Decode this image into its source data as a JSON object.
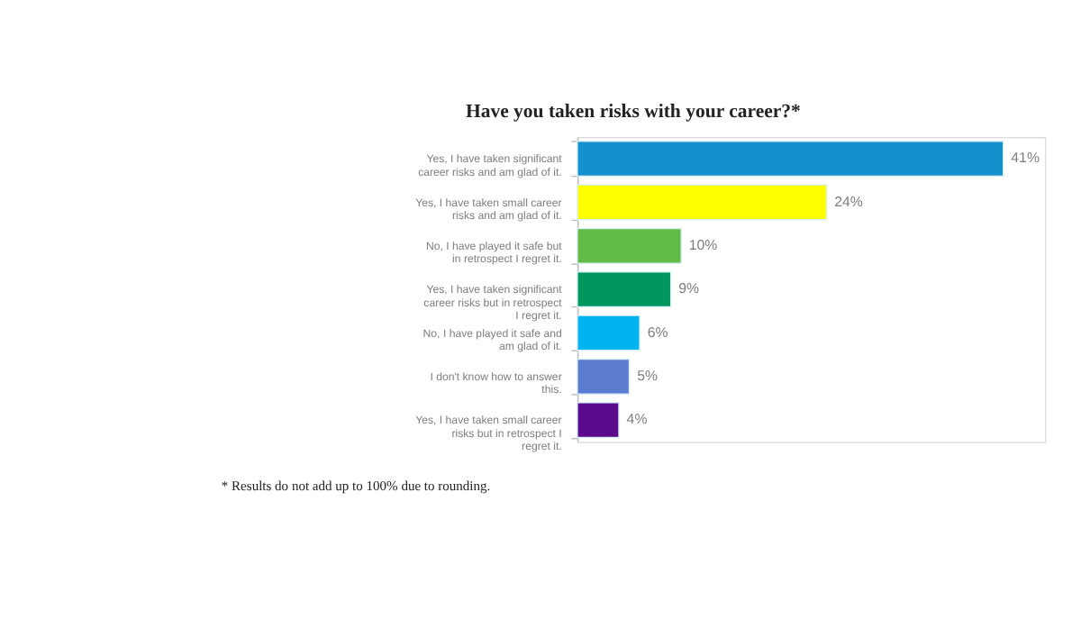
{
  "chart_data": {
    "type": "bar",
    "orientation": "horizontal",
    "title": "Have you taken risks with your career?*",
    "categories": [
      "Yes, I have taken significant career risks and am glad of it.",
      "Yes, I have taken small career risks and am glad of it.",
      "No, I have played it safe but in retrospect I regret it.",
      "Yes, I have taken significant career risks but in retrospect I regret it.",
      "No, I have played it safe and am glad of it.",
      "I don't know how to answer this.",
      "Yes, I have taken small career risks but in retrospect I regret it."
    ],
    "values": [
      41,
      24,
      10,
      9,
      6,
      5,
      4
    ],
    "colors": [
      "#1490cc",
      "#ffff00",
      "#62bb46",
      "#00965e",
      "#00b4f0",
      "#5b7bd0",
      "#5c0a8c"
    ],
    "value_labels": [
      "41%",
      "24%",
      "10%",
      "9%",
      "6%",
      "5%",
      "4%"
    ],
    "grid": false,
    "legend": false,
    "annotations": [
      "* Results do not add up to 100% due to rounding."
    ]
  }
}
